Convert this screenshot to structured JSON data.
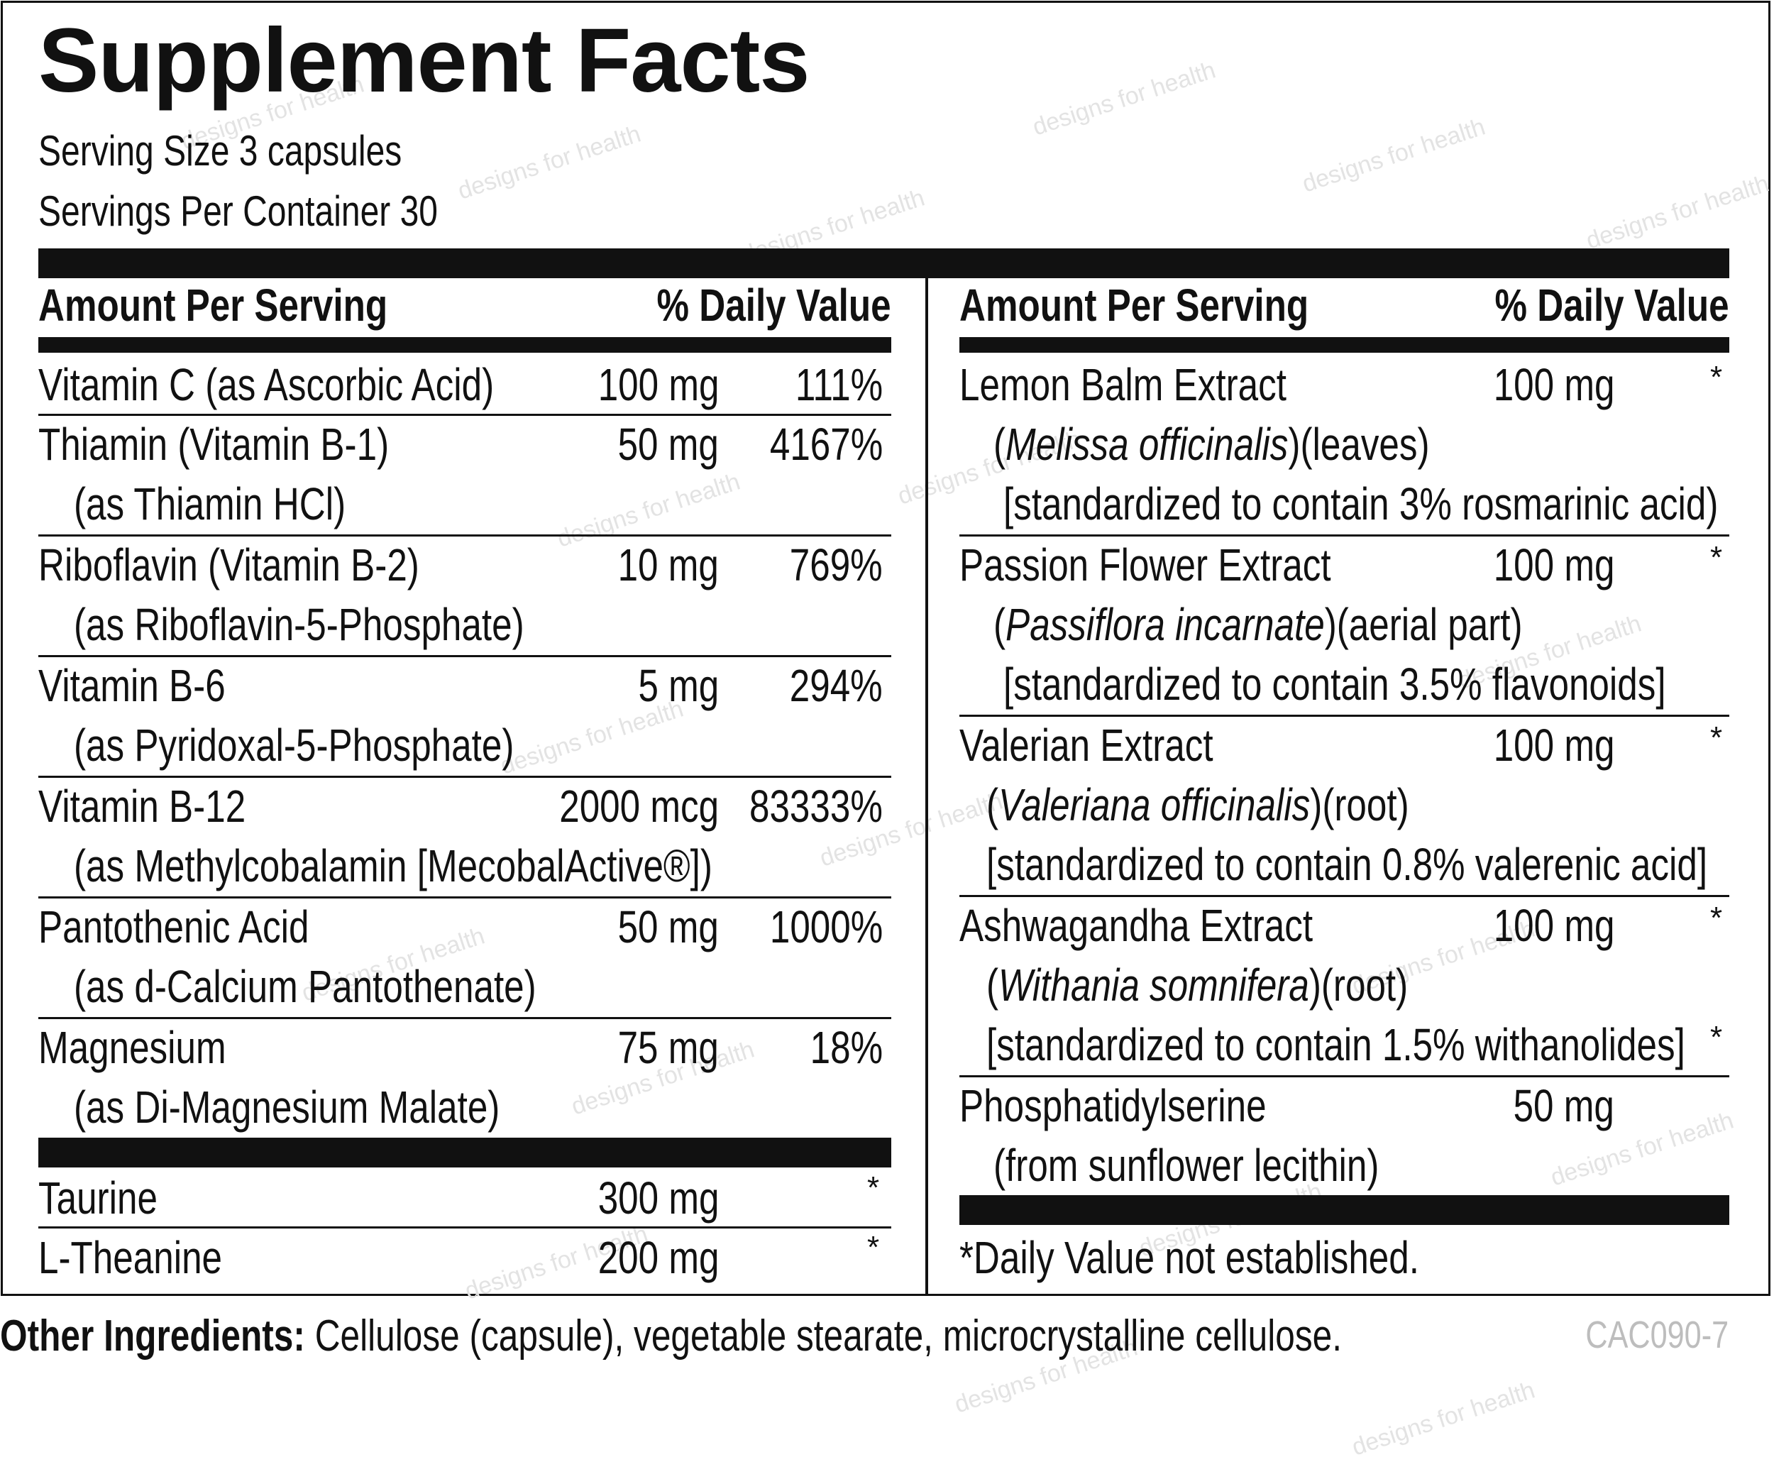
{
  "title": "Supplement Facts",
  "serving_size": "Serving Size 3 capsules",
  "servings_per_container": "Servings Per Container 30",
  "watermark": "designs for health",
  "header": {
    "amount": "Amount Per Serving",
    "dv": "% Daily Value"
  },
  "left_rows": [
    {
      "name": "Vitamin C (as Ascorbic Acid)",
      "amount": "100 mg",
      "dv": "111%"
    },
    {
      "name": "Thiamin (Vitamin B-1)",
      "sub": "(as Thiamin HCl)",
      "amount": "50 mg",
      "dv": "4167%"
    },
    {
      "name": "Riboflavin (Vitamin B-2)",
      "sub": "(as Riboflavin-5-Phosphate)",
      "amount": "10 mg",
      "dv": "769%"
    },
    {
      "name": "Vitamin B-6",
      "sub": "(as Pyridoxal-5-Phosphate)",
      "amount": "5 mg",
      "dv": "294%"
    },
    {
      "name": "Vitamin B-12",
      "sub": "(as Methylcobalamin [MecobalActive®])",
      "amount": "2000 mcg",
      "dv": "83333%"
    },
    {
      "name": "Pantothenic Acid",
      "sub": "(as d-Calcium Pantothenate)",
      "amount": "50 mg",
      "dv": "1000%"
    },
    {
      "name": "Magnesium",
      "sub": "(as Di-Magnesium Malate)",
      "amount": "75 mg",
      "dv": "18%"
    }
  ],
  "left_extra": [
    {
      "name": "Taurine",
      "amount": "300 mg",
      "dv": "*"
    },
    {
      "name": "L-Theanine",
      "amount": "200 mg",
      "dv": "*"
    }
  ],
  "right_rows": [
    {
      "name": "Lemon Balm Extract",
      "latin": "Melissa officinalis",
      "part": ")(leaves)",
      "std": "[standardized to contain 3% rosmarinic acid)",
      "amount": "100 mg",
      "dv": "*"
    },
    {
      "name": "Passion Flower Extract",
      "latin": "Passiflora incarnate",
      "part": ")(aerial part)",
      "std": "[standardized to contain 3.5% flavonoids]",
      "amount": "100 mg",
      "dv": "*"
    },
    {
      "name": "Valerian Extract",
      "latin": "Valeriana officinalis",
      "part": ")(root)",
      "std": "[standardized to contain 0.8% valerenic acid]",
      "amount": "100 mg",
      "dv": "*"
    },
    {
      "name": "Ashwagandha Extract",
      "latin": "Withania somnifera",
      "part": ")(root)",
      "std": "[standardized to contain 1.5% withanolides]",
      "amount": "100 mg",
      "dv": "*",
      "std_dv": "*"
    },
    {
      "name": "Phosphatidylserine",
      "sub": "(from sunflower lecithin)",
      "amount": "50 mg"
    }
  ],
  "footnote": "*Daily Value not established.",
  "other_ingredients_label": "Other Ingredients:",
  "other_ingredients": " Cellulose (capsule), vegetable stearate, microcrystalline cellulose.",
  "code": "CAC090-7"
}
